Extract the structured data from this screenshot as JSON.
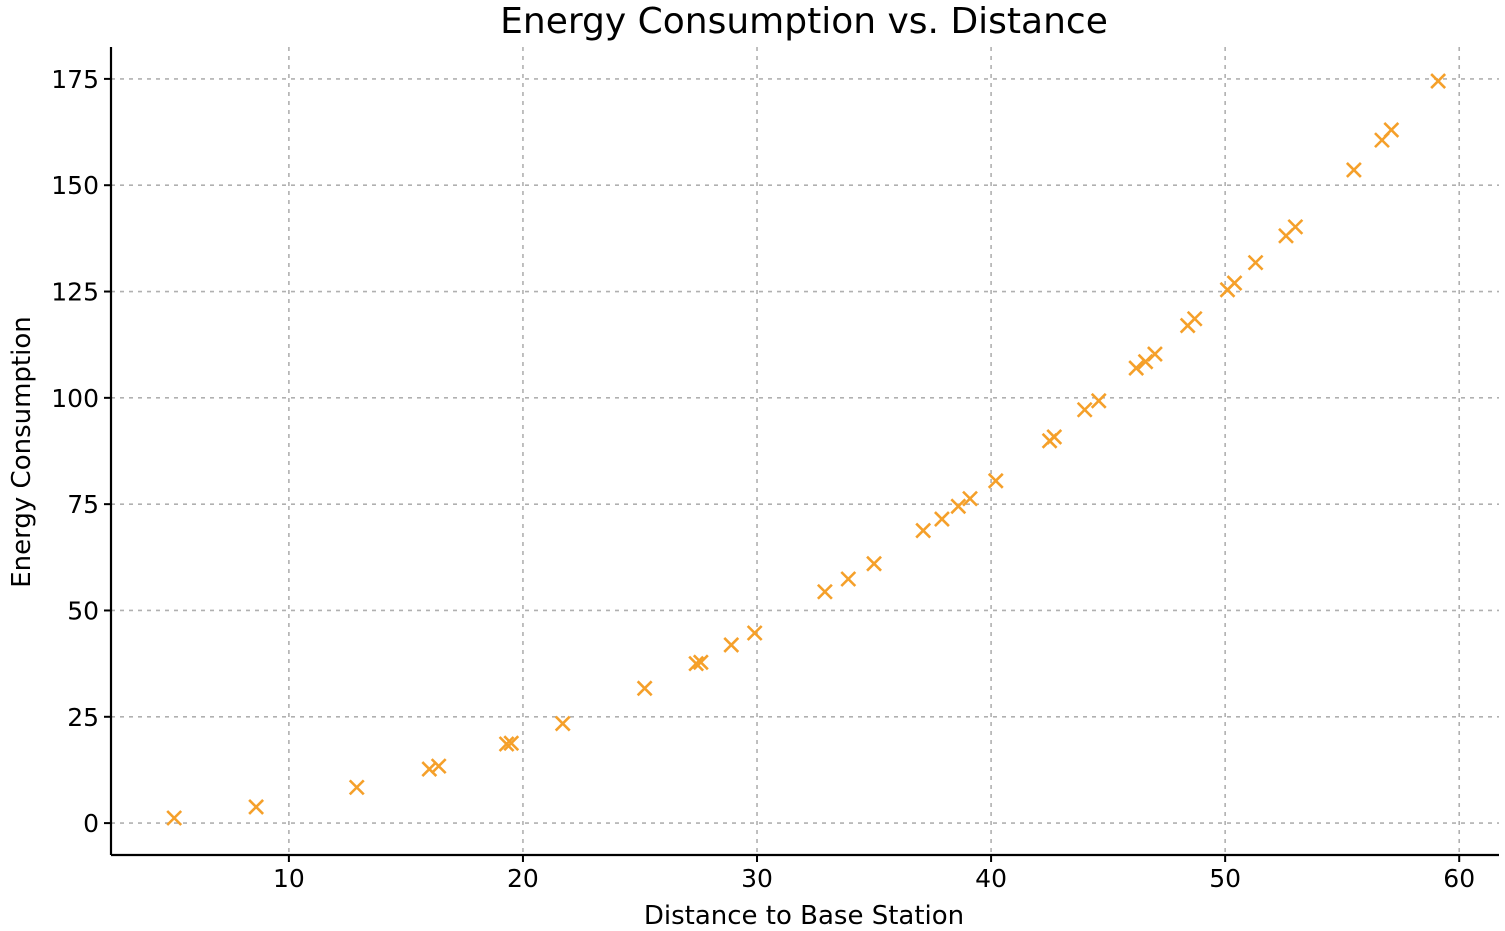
{
  "colors": {
    "marker": "#f5a02a",
    "axis": "#000000",
    "grid": "#b0b0b0",
    "background": "#ffffff"
  },
  "chart_data": {
    "type": "scatter",
    "title": "Energy Consumption vs. Distance",
    "xlabel": "Distance to Base Station",
    "ylabel": "Energy Consumption",
    "xlim": [
      2.4,
      61.7
    ],
    "ylim": [
      -7.5,
      182.5
    ],
    "xticks": [
      10,
      20,
      30,
      40,
      50,
      60
    ],
    "yticks": [
      0,
      25,
      50,
      75,
      100,
      125,
      150,
      175
    ],
    "grid": true,
    "marker": "x",
    "series": [
      {
        "name": "Energy Consumption",
        "points": [
          [
            5.1,
            1.2
          ],
          [
            8.6,
            3.8
          ],
          [
            12.9,
            8.4
          ],
          [
            16.0,
            12.7
          ],
          [
            16.4,
            13.4
          ],
          [
            19.3,
            18.6
          ],
          [
            19.5,
            18.8
          ],
          [
            21.7,
            23.4
          ],
          [
            25.2,
            31.7
          ],
          [
            27.4,
            37.5
          ],
          [
            27.6,
            37.8
          ],
          [
            28.9,
            41.9
          ],
          [
            29.9,
            44.7
          ],
          [
            32.9,
            54.4
          ],
          [
            33.9,
            57.4
          ],
          [
            35.0,
            61.0
          ],
          [
            37.1,
            68.8
          ],
          [
            37.9,
            71.5
          ],
          [
            38.6,
            74.5
          ],
          [
            39.1,
            76.3
          ],
          [
            40.2,
            80.5
          ],
          [
            42.5,
            89.9
          ],
          [
            42.7,
            90.8
          ],
          [
            44.0,
            97.2
          ],
          [
            44.6,
            99.3
          ],
          [
            46.2,
            107.0
          ],
          [
            46.6,
            108.5
          ],
          [
            47.0,
            110.3
          ],
          [
            48.4,
            117.0
          ],
          [
            48.7,
            118.6
          ],
          [
            50.1,
            125.4
          ],
          [
            50.4,
            127.0
          ],
          [
            51.3,
            131.8
          ],
          [
            52.6,
            138.1
          ],
          [
            53.0,
            140.2
          ],
          [
            55.5,
            153.6
          ],
          [
            56.7,
            160.6
          ],
          [
            57.1,
            163.0
          ],
          [
            59.1,
            174.5
          ]
        ]
      }
    ]
  }
}
